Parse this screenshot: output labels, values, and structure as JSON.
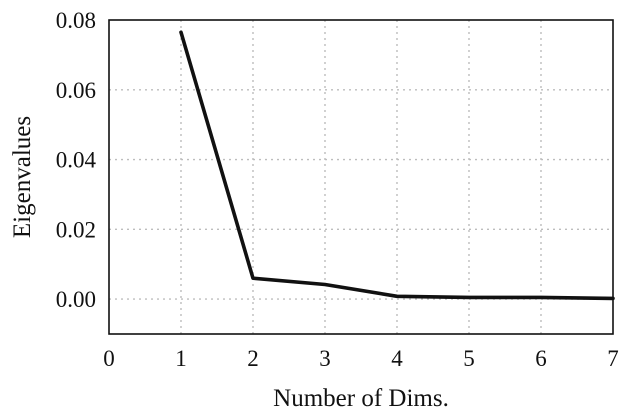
{
  "chart_data": {
    "type": "line",
    "xlabel": "Number of Dims.",
    "ylabel": "Eigenvalues",
    "xlim": [
      0,
      7
    ],
    "ylim": [
      -0.01,
      0.08
    ],
    "x_ticks": [
      0,
      1,
      2,
      3,
      4,
      5,
      6,
      7
    ],
    "y_ticks": [
      0.0,
      0.02,
      0.04,
      0.06,
      0.08
    ],
    "x_tick_labels": [
      "0",
      "1",
      "2",
      "3",
      "4",
      "5",
      "6",
      "7"
    ],
    "y_tick_labels": [
      "0.00",
      "0.02",
      "0.04",
      "0.06",
      "0.08"
    ],
    "grid": true,
    "series": [
      {
        "x": [
          1,
          2,
          3,
          4,
          5,
          6,
          7
        ],
        "values": [
          0.0765,
          0.006,
          0.0042,
          0.0008,
          0.0005,
          0.0005,
          0.0002
        ],
        "color": "#111111"
      }
    ]
  }
}
